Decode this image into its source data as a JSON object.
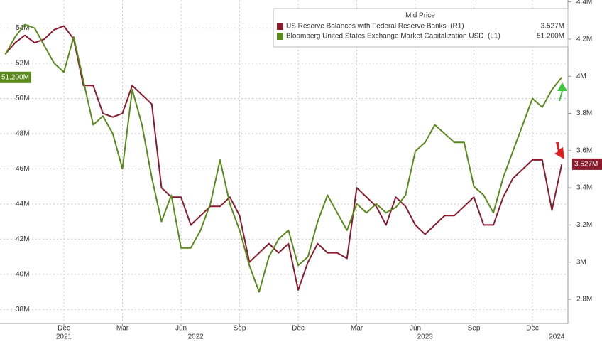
{
  "chart_data": {
    "type": "line",
    "legend_title": "Mid Price",
    "legend": "upper right",
    "grid": true,
    "categories": [
      null,
      null,
      null,
      null,
      null,
      null,
      "Dec",
      null,
      null,
      null,
      null,
      null,
      "Mar",
      null,
      null,
      null,
      null,
      null,
      "Jun",
      null,
      null,
      null,
      null,
      null,
      "Sep",
      null,
      null,
      null,
      null,
      null,
      "Dec",
      null,
      null,
      null,
      null,
      null,
      "Mar",
      null,
      null,
      null,
      null,
      null,
      "Jun",
      null,
      null,
      null,
      null,
      null,
      "Sep",
      null,
      null,
      null,
      null,
      null,
      "Dec",
      null,
      null,
      null
    ],
    "x_groups": [
      "2021",
      "2022",
      "2023",
      "2024"
    ],
    "ylim": [
      37.2,
      55.6
    ],
    "yticks": [
      {
        "value": 38,
        "label": "38M"
      },
      {
        "value": 40,
        "label": "40M"
      },
      {
        "value": 42,
        "label": "42M"
      },
      {
        "value": 44,
        "label": "44M"
      },
      {
        "value": 46,
        "label": "46M"
      },
      {
        "value": 48,
        "label": "48M"
      },
      {
        "value": 50,
        "label": "50M"
      },
      {
        "value": 52,
        "label": "52M"
      },
      {
        "value": 54,
        "label": "54M"
      }
    ],
    "y2lim": [
      2.67,
      4.41
    ],
    "y2ticks": [
      {
        "value": 2.8,
        "label": "2.8M"
      },
      {
        "value": 3,
        "label": "3M"
      },
      {
        "value": 3.2,
        "label": "3.2M"
      },
      {
        "value": 3.4,
        "label": "3.4M"
      },
      {
        "value": 3.6,
        "label": "3.6M"
      },
      {
        "value": 3.8,
        "label": "3.8M"
      },
      {
        "value": 4,
        "label": "4M"
      },
      {
        "value": 4.2,
        "label": "4.2M"
      },
      {
        "value": 4.4,
        "label": "4.4M"
      }
    ],
    "series": [
      {
        "name": "US Reserve Balances with Federal Reserve Banks  (R1)",
        "color": "#8b1a2e",
        "axis": "y2",
        "last_value_label": "3.527M",
        "values": [
          4.12,
          4.18,
          4.22,
          4.18,
          4.2,
          4.25,
          4.27,
          4.2,
          3.95,
          3.95,
          3.8,
          3.78,
          3.8,
          3.95,
          3.9,
          3.85,
          3.4,
          3.35,
          3.35,
          3.2,
          3.25,
          3.3,
          3.3,
          3.35,
          3.25,
          3.0,
          3.05,
          3.1,
          3.05,
          3.1,
          2.85,
          3.0,
          3.1,
          3.05,
          3.05,
          3.02,
          3.4,
          3.35,
          3.3,
          3.2,
          3.35,
          3.3,
          3.2,
          3.15,
          3.2,
          3.25,
          3.25,
          3.3,
          3.35,
          3.2,
          3.2,
          3.35,
          3.45,
          3.5,
          3.55,
          3.55,
          3.28,
          3.527
        ]
      },
      {
        "name": "Bloomberg United States Exchange Market Capitalization USD  (L1)",
        "color": "#5a8a1c",
        "axis": "y",
        "last_value_label": "51.200M",
        "values": [
          52.5,
          53.5,
          54.2,
          54.0,
          53.0,
          52.0,
          51.5,
          53.5,
          51.0,
          48.5,
          49.0,
          48.0,
          46.0,
          50.5,
          48.5,
          45.5,
          43.0,
          44.5,
          41.5,
          41.5,
          42.5,
          44.0,
          46.5,
          44.0,
          42.5,
          40.5,
          39.0,
          41.0,
          42.0,
          42.5,
          40.5,
          41.0,
          43.0,
          44.5,
          43.5,
          42.5,
          44.0,
          43.5,
          44.0,
          43.5,
          43.8,
          44.5,
          47.0,
          47.5,
          48.5,
          48.0,
          47.5,
          47.5,
          45.0,
          44.5,
          43.5,
          45.5,
          47.0,
          48.5,
          50.0,
          49.5,
          50.5,
          51.2
        ]
      }
    ]
  }
}
